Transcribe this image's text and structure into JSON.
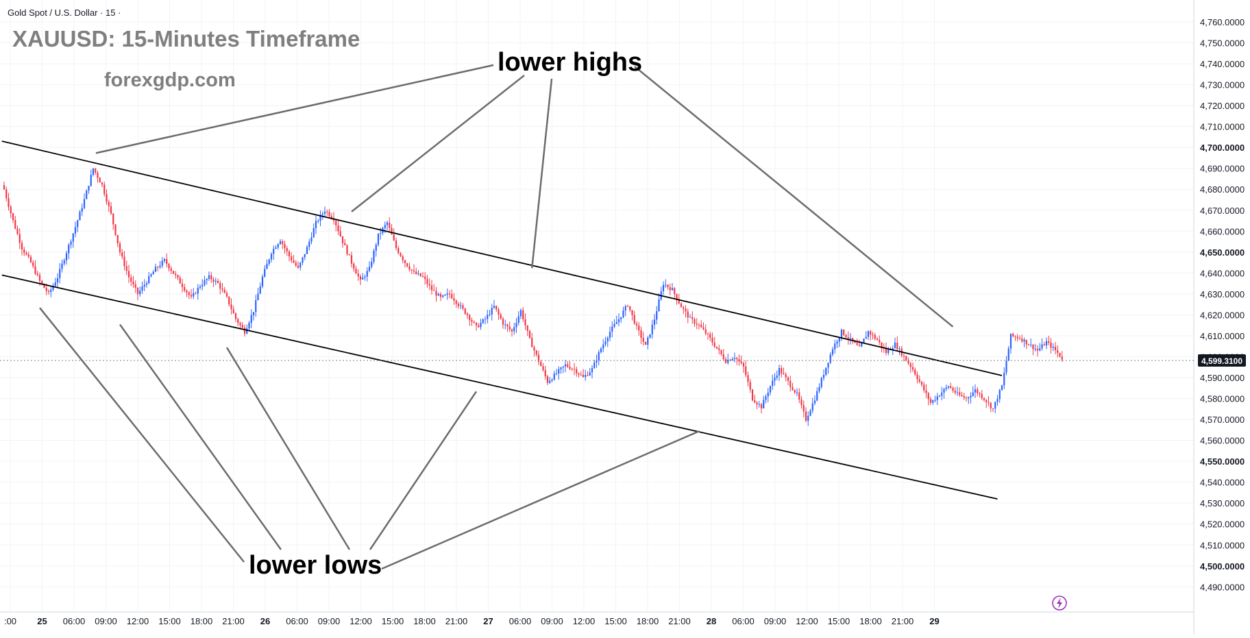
{
  "header": {
    "symbol_label": "Gold Spot / U.S. Dollar · 15 ·",
    "title": "XAUUSD: 15-Minutes Timeframe",
    "website": "forexgdp.com"
  },
  "colors": {
    "up": "#2962ff",
    "down": "#f23645",
    "grid": "#f0f3fa",
    "trendline": "#000000",
    "annotation_line": "#6b6b6b",
    "last_price_bg": "#131722"
  },
  "price_axis": {
    "ticks": [
      "4,760.0000",
      "4,750.0000",
      "4,740.0000",
      "4,730.0000",
      "4,720.0000",
      "4,710.0000",
      "4,700.0000",
      "4,690.0000",
      "4,680.0000",
      "4,670.0000",
      "4,660.0000",
      "4,650.0000",
      "4,640.0000",
      "4,630.0000",
      "4,620.0000",
      "4,610.0000",
      "4,600.0000",
      "4,590.0000",
      "4,580.0000",
      "4,570.0000",
      "4,560.0000",
      "4,550.0000",
      "4,540.0000",
      "4,530.0000",
      "4,520.0000",
      "4,510.0000",
      "4,500.0000",
      "4,490.0000"
    ],
    "bold_ticks": [
      "4,700.0000",
      "4,650.0000",
      "4,550.0000",
      "4,500.0000"
    ],
    "last_price": "4,599.3100"
  },
  "time_axis": {
    "ticks": [
      ":00",
      "25",
      "06:00",
      "09:00",
      "12:00",
      "15:00",
      "18:00",
      "21:00",
      "26",
      "06:00",
      "09:00",
      "12:00",
      "15:00",
      "18:00",
      "21:00",
      "27",
      "06:00",
      "09:00",
      "12:00",
      "15:00",
      "18:00",
      "21:00",
      "28",
      "06:00",
      "09:00",
      "12:00",
      "15:00",
      "18:00",
      "21:00",
      "29"
    ],
    "bold_ticks": [
      "25",
      "26",
      "27",
      "28",
      "29"
    ]
  },
  "annotations": {
    "top_label": "lower highs",
    "bottom_label": "lower lows"
  },
  "chart_data": {
    "type": "candlestick",
    "timeframe": "15",
    "price_range": [
      4484,
      4766
    ],
    "last_price": 4599.31,
    "swing_highs": [
      {
        "time": "25 06:00",
        "price": 4696
      },
      {
        "time": "26 ~03:00",
        "price": 4673
      },
      {
        "time": "26 ~08:00",
        "price": 4669
      },
      {
        "time": "27 ~07:30",
        "price": 4641
      },
      {
        "time": "28 ~12:15",
        "price": 4613
      }
    ],
    "swing_lows": [
      {
        "time": "24 ~22:00",
        "price": 4625
      },
      {
        "time": "25 ~09:00",
        "price": 4617
      },
      {
        "time": "25 ~19:00",
        "price": 4604
      },
      {
        "time": "26 ~20:30",
        "price": 4583
      },
      {
        "time": "27 ~19:30",
        "price": 4564
      }
    ],
    "close_path": [
      [
        0,
        4680
      ],
      [
        4,
        4665
      ],
      [
        8,
        4652
      ],
      [
        12,
        4645
      ],
      [
        16,
        4636
      ],
      [
        20,
        4630
      ],
      [
        24,
        4638
      ],
      [
        28,
        4650
      ],
      [
        32,
        4662
      ],
      [
        36,
        4675
      ],
      [
        40,
        4690
      ],
      [
        44,
        4682
      ],
      [
        48,
        4668
      ],
      [
        52,
        4650
      ],
      [
        56,
        4638
      ],
      [
        60,
        4630
      ],
      [
        64,
        4636
      ],
      [
        68,
        4642
      ],
      [
        72,
        4646
      ],
      [
        76,
        4640
      ],
      [
        80,
        4634
      ],
      [
        84,
        4628
      ],
      [
        88,
        4634
      ],
      [
        92,
        4638
      ],
      [
        96,
        4635
      ],
      [
        100,
        4628
      ],
      [
        104,
        4618
      ],
      [
        108,
        4612
      ],
      [
        112,
        4622
      ],
      [
        116,
        4638
      ],
      [
        120,
        4650
      ],
      [
        124,
        4656
      ],
      [
        128,
        4648
      ],
      [
        132,
        4642
      ],
      [
        136,
        4652
      ],
      [
        140,
        4664
      ],
      [
        144,
        4670
      ],
      [
        148,
        4666
      ],
      [
        152,
        4655
      ],
      [
        156,
        4645
      ],
      [
        160,
        4636
      ],
      [
        164,
        4642
      ],
      [
        168,
        4658
      ],
      [
        172,
        4664
      ],
      [
        176,
        4652
      ],
      [
        180,
        4645
      ],
      [
        184,
        4640
      ],
      [
        188,
        4638
      ],
      [
        192,
        4632
      ],
      [
        196,
        4628
      ],
      [
        200,
        4630
      ],
      [
        204,
        4625
      ],
      [
        208,
        4620
      ],
      [
        212,
        4614
      ],
      [
        216,
        4618
      ],
      [
        220,
        4624
      ],
      [
        224,
        4616
      ],
      [
        228,
        4612
      ],
      [
        232,
        4622
      ],
      [
        236,
        4608
      ],
      [
        240,
        4598
      ],
      [
        244,
        4588
      ],
      [
        248,
        4592
      ],
      [
        252,
        4596
      ],
      [
        256,
        4594
      ],
      [
        260,
        4590
      ],
      [
        264,
        4594
      ],
      [
        268,
        4604
      ],
      [
        272,
        4612
      ],
      [
        276,
        4618
      ],
      [
        280,
        4625
      ],
      [
        284,
        4614
      ],
      [
        288,
        4605
      ],
      [
        292,
        4618
      ],
      [
        296,
        4635
      ],
      [
        300,
        4632
      ],
      [
        304,
        4624
      ],
      [
        308,
        4618
      ],
      [
        312,
        4615
      ],
      [
        316,
        4610
      ],
      [
        320,
        4604
      ],
      [
        324,
        4598
      ],
      [
        328,
        4600
      ],
      [
        332,
        4595
      ],
      [
        336,
        4580
      ],
      [
        340,
        4576
      ],
      [
        344,
        4586
      ],
      [
        348,
        4594
      ],
      [
        352,
        4588
      ],
      [
        356,
        4582
      ],
      [
        360,
        4570
      ],
      [
        364,
        4580
      ],
      [
        368,
        4592
      ],
      [
        372,
        4604
      ],
      [
        376,
        4612
      ],
      [
        380,
        4608
      ],
      [
        384,
        4604
      ],
      [
        388,
        4612
      ],
      [
        392,
        4608
      ],
      [
        396,
        4602
      ],
      [
        400,
        4606
      ],
      [
        404,
        4600
      ],
      [
        408,
        4594
      ],
      [
        412,
        4586
      ],
      [
        416,
        4578
      ],
      [
        420,
        4582
      ],
      [
        424,
        4586
      ],
      [
        428,
        4582
      ],
      [
        432,
        4580
      ],
      [
        436,
        4584
      ],
      [
        440,
        4580
      ],
      [
        444,
        4575
      ],
      [
        448,
        4586
      ],
      [
        452,
        4610
      ],
      [
        456,
        4609
      ],
      [
        460,
        4606
      ],
      [
        464,
        4603
      ],
      [
        468,
        4607
      ],
      [
        472,
        4603
      ],
      [
        475,
        4599.31
      ]
    ]
  }
}
